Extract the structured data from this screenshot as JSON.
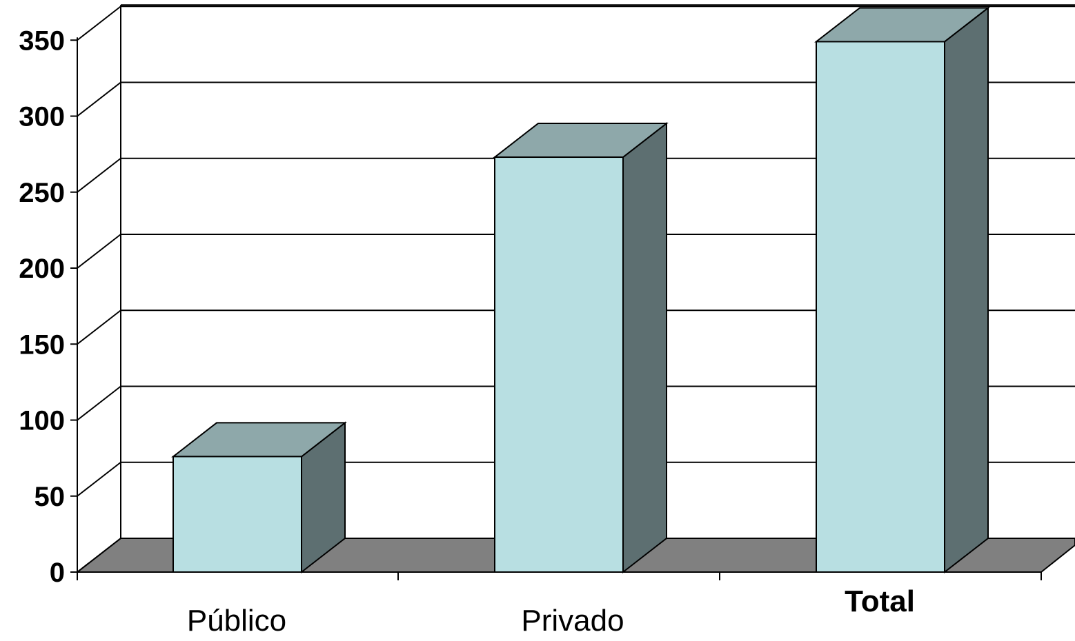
{
  "chart_data": {
    "type": "bar",
    "style": "3d-column",
    "categories": [
      "Público",
      "Privado",
      "Total"
    ],
    "emphasized_categories": [
      "Total"
    ],
    "values": [
      76,
      273,
      349
    ],
    "ylim": [
      0,
      350
    ],
    "yticks": [
      0,
      50,
      100,
      150,
      200,
      250,
      300,
      350
    ],
    "ytick_labels": [
      "0",
      "50",
      "100",
      "150",
      "200",
      "250",
      "300",
      "350"
    ],
    "title": "",
    "xlabel": "",
    "ylabel": "",
    "grid": true,
    "legend": "none",
    "colors": {
      "bar_front": "#b8dfe2",
      "bar_top": "#8ea8aa",
      "bar_side": "#5d6f71",
      "floor": "#808080",
      "gridline": "#000000",
      "axis": "#000000"
    }
  }
}
